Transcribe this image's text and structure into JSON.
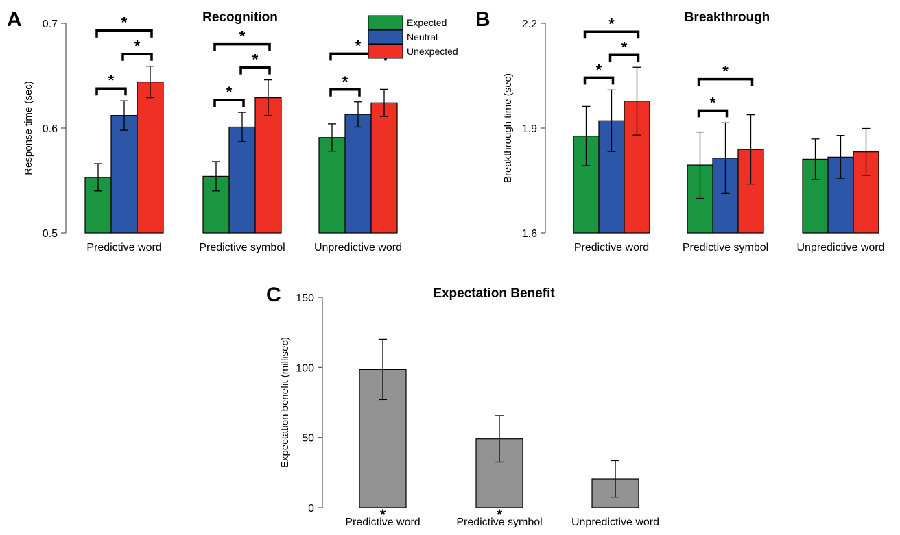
{
  "chart_data": [
    {
      "panel": "A",
      "type": "bar",
      "title": "Recognition",
      "ylabel": "Response time (sec)",
      "xlabel": "",
      "ylim": [
        0.5,
        0.7
      ],
      "yticks": [
        "0.5",
        "0.6",
        "0.7"
      ],
      "categories": [
        "Predictive word",
        "Predictive symbol",
        "Unpredictive word"
      ],
      "legend": {
        "position": "top-right"
      },
      "series": [
        {
          "name": "Expected",
          "color": "#1a9641",
          "values": [
            0.553,
            0.554,
            0.591
          ],
          "errors": [
            0.013,
            0.014,
            0.013
          ]
        },
        {
          "name": "Neutral",
          "color": "#2c56a8",
          "values": [
            0.612,
            0.601,
            0.613
          ],
          "errors": [
            0.014,
            0.014,
            0.012
          ]
        },
        {
          "name": "Unexpected",
          "color": "#ee3124",
          "values": [
            0.644,
            0.629,
            0.624
          ],
          "errors": [
            0.015,
            0.017,
            0.013
          ]
        }
      ],
      "significance": [
        {
          "category": 0,
          "from": 0,
          "to": 1,
          "label": "*"
        },
        {
          "category": 0,
          "from": 1,
          "to": 2,
          "label": "*"
        },
        {
          "category": 0,
          "from": 0,
          "to": 2,
          "label": "*"
        },
        {
          "category": 1,
          "from": 0,
          "to": 1,
          "label": "*"
        },
        {
          "category": 1,
          "from": 1,
          "to": 2,
          "label": "*"
        },
        {
          "category": 1,
          "from": 0,
          "to": 2,
          "label": "*"
        },
        {
          "category": 2,
          "from": 0,
          "to": 1,
          "label": "*"
        },
        {
          "category": 2,
          "from": 0,
          "to": 2,
          "label": "*"
        }
      ]
    },
    {
      "panel": "B",
      "type": "bar",
      "title": "Breakthrough",
      "ylabel": "Breakthrough time (sec)",
      "xlabel": "",
      "ylim": [
        1.6,
        2.2
      ],
      "yticks": [
        "1.6",
        "1.9",
        "2.2"
      ],
      "categories": [
        "Predictive word",
        "Predictive symbol",
        "Unpredictive word"
      ],
      "series": [
        {
          "name": "Expected",
          "color": "#1a9641",
          "values": [
            1.877,
            1.794,
            1.811
          ],
          "errors": [
            0.085,
            0.095,
            0.058
          ]
        },
        {
          "name": "Neutral",
          "color": "#2c56a8",
          "values": [
            1.921,
            1.814,
            1.817
          ],
          "errors": [
            0.088,
            0.101,
            0.062
          ]
        },
        {
          "name": "Unexpected",
          "color": "#ee3124",
          "values": [
            1.977,
            1.839,
            1.832
          ],
          "errors": [
            0.097,
            0.099,
            0.067
          ]
        }
      ],
      "significance": [
        {
          "category": 0,
          "from": 0,
          "to": 1,
          "label": "*"
        },
        {
          "category": 0,
          "from": 1,
          "to": 2,
          "label": "*"
        },
        {
          "category": 0,
          "from": 0,
          "to": 2,
          "label": "*"
        },
        {
          "category": 1,
          "from": 0,
          "to": 1,
          "label": "*"
        },
        {
          "category": 1,
          "from": 0,
          "to": 2,
          "label": "*"
        }
      ]
    },
    {
      "panel": "C",
      "type": "bar",
      "title": "Expectation Benefit",
      "ylabel": "Expectation benefit (millisec)",
      "xlabel": "",
      "ylim": [
        0,
        150
      ],
      "yticks": [
        "0",
        "50",
        "100",
        "150"
      ],
      "categories": [
        "Predictive word",
        "Predictive symbol",
        "Unpredictive word"
      ],
      "series": [
        {
          "name": "",
          "color": "#939393",
          "values": [
            98.5,
            49,
            20.5
          ],
          "errors": [
            21.5,
            16.5,
            13
          ]
        }
      ],
      "markers": [
        "*",
        "*",
        ""
      ]
    }
  ]
}
